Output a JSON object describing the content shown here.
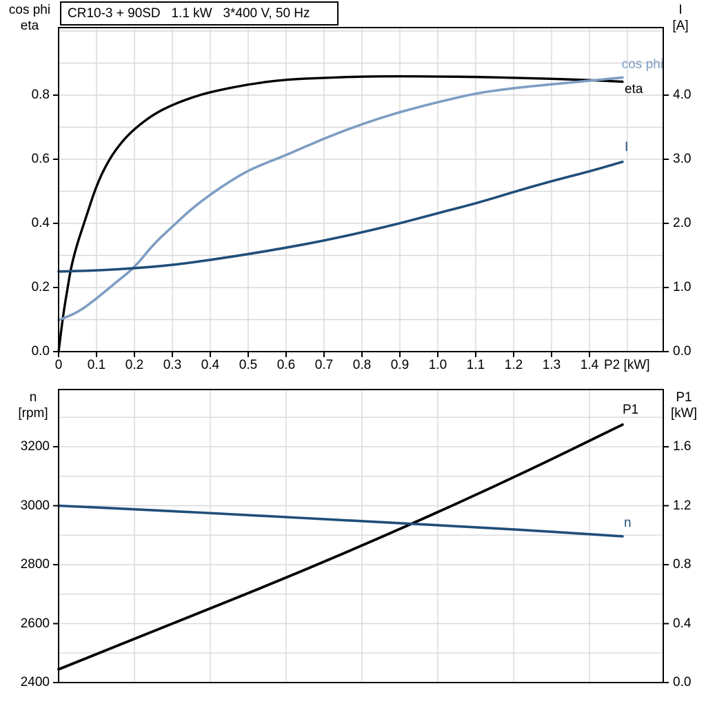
{
  "window": {
    "background": "#FFFFFF"
  },
  "title_box": {
    "text": "CR10-3 + 90SD   1.1 kW   3*400 V, 50 Hz"
  },
  "axes_titles": {
    "top_left_1": "cos phi",
    "top_left_2": "eta",
    "top_right_1": "I",
    "top_right_2": "[A]",
    "x_axis": "P2 [kW]",
    "bottom_left_1": "n",
    "bottom_left_2": "[rpm]",
    "bottom_right_1": "P1",
    "bottom_right_2": "[kW]"
  },
  "curve_labels": {
    "cos_phi": "cos phi",
    "eta": "eta",
    "current": "I",
    "p1": "P1",
    "speed": "n"
  },
  "colors": {
    "background": "#FFFFFF",
    "black": "#000000",
    "light_blue": "#7D9DC2",
    "dark_blue": "#1F4E79",
    "grid": "#D8D8D8",
    "frame": "#000000"
  },
  "chart_data": [
    {
      "type": "line",
      "title": "CR10-3 + 90SD  1.1 kW  3*400 V, 50 Hz",
      "xlabel": "P2 [kW]",
      "ylabel_left": "cos phi / eta",
      "ylabel_right": "I [A]",
      "xlim": [
        0,
        1.5945
      ],
      "ylim_left": [
        0,
        1.0108
      ],
      "ylim_right": [
        0,
        5.054
      ],
      "grid": true,
      "x_grid": [
        0.1,
        0.2,
        0.3,
        0.4,
        0.5,
        0.6,
        0.7,
        0.8,
        0.9,
        1.0,
        1.1,
        1.2,
        1.3,
        1.4,
        1.5
      ],
      "y_grid_left": [
        0.1,
        0.2,
        0.3,
        0.4,
        0.5,
        0.6,
        0.7,
        0.8,
        0.9,
        1.0
      ],
      "x_ticks": [
        {
          "v": 0,
          "t": "0"
        },
        {
          "v": 0.1,
          "t": "0.1"
        },
        {
          "v": 0.2,
          "t": "0.2"
        },
        {
          "v": 0.3,
          "t": "0.3"
        },
        {
          "v": 0.4,
          "t": "0.4"
        },
        {
          "v": 0.5,
          "t": "0.5"
        },
        {
          "v": 0.6,
          "t": "0.6"
        },
        {
          "v": 0.7,
          "t": "0.7"
        },
        {
          "v": 0.8,
          "t": "0.8"
        },
        {
          "v": 0.9,
          "t": "0.9"
        },
        {
          "v": 1.0,
          "t": "1.0"
        },
        {
          "v": 1.1,
          "t": "1.1"
        },
        {
          "v": 1.2,
          "t": "1.2"
        },
        {
          "v": 1.3,
          "t": "1.3"
        },
        {
          "v": 1.4,
          "t": "1.4"
        }
      ],
      "left_ticks": [
        {
          "v": 0.0,
          "t": "0.0"
        },
        {
          "v": 0.2,
          "t": "0.2"
        },
        {
          "v": 0.4,
          "t": "0.4"
        },
        {
          "v": 0.6,
          "t": "0.6"
        },
        {
          "v": 0.8,
          "t": "0.8"
        }
      ],
      "right_ticks": [
        {
          "v": 0.0,
          "t": "0.0"
        },
        {
          "v": 1.0,
          "t": "1.0"
        },
        {
          "v": 2.0,
          "t": "2.0"
        },
        {
          "v": 3.0,
          "t": "3.0"
        },
        {
          "v": 4.0,
          "t": "4.0"
        }
      ],
      "series": [
        {
          "name": "eta",
          "axis": "left",
          "color": "#000000",
          "width": 3.4,
          "points": [
            [
              0,
              0
            ],
            [
              0.012,
              0.115
            ],
            [
              0.024,
              0.2
            ],
            [
              0.033,
              0.265
            ],
            [
              0.05,
              0.34
            ],
            [
              0.067,
              0.4
            ],
            [
              0.1,
              0.52
            ],
            [
              0.133,
              0.6
            ],
            [
              0.167,
              0.655
            ],
            [
              0.2,
              0.695
            ],
            [
              0.25,
              0.74
            ],
            [
              0.3,
              0.77
            ],
            [
              0.35,
              0.792
            ],
            [
              0.4,
              0.81
            ],
            [
              0.5,
              0.834
            ],
            [
              0.6,
              0.849
            ],
            [
              0.7,
              0.854
            ],
            [
              0.8,
              0.858
            ],
            [
              0.9,
              0.859
            ],
            [
              1.0,
              0.858
            ],
            [
              1.1,
              0.857
            ],
            [
              1.2,
              0.854
            ],
            [
              1.3,
              0.851
            ],
            [
              1.4,
              0.847
            ],
            [
              1.487,
              0.842
            ]
          ]
        },
        {
          "name": "cos phi",
          "axis": "left",
          "color": "#7D9DC2",
          "width": 3.6,
          "points": [
            [
              0,
              0.098
            ],
            [
              0.05,
              0.122
            ],
            [
              0.1,
              0.165
            ],
            [
              0.15,
              0.215
            ],
            [
              0.2,
              0.262
            ],
            [
              0.25,
              0.335
            ],
            [
              0.3,
              0.39
            ],
            [
              0.35,
              0.445
            ],
            [
              0.4,
              0.49
            ],
            [
              0.45,
              0.53
            ],
            [
              0.5,
              0.565
            ],
            [
              0.55,
              0.59
            ],
            [
              0.6,
              0.613
            ],
            [
              0.7,
              0.665
            ],
            [
              0.8,
              0.71
            ],
            [
              0.9,
              0.748
            ],
            [
              1.0,
              0.778
            ],
            [
              1.1,
              0.806
            ],
            [
              1.2,
              0.822
            ],
            [
              1.3,
              0.834
            ],
            [
              1.4,
              0.845
            ],
            [
              1.487,
              0.855
            ]
          ]
        },
        {
          "name": "I",
          "axis": "right",
          "color": "#1F4E79",
          "width": 3.6,
          "points": [
            [
              0,
              1.25
            ],
            [
              0.1,
              1.265
            ],
            [
              0.2,
              1.3
            ],
            [
              0.3,
              1.35
            ],
            [
              0.4,
              1.43
            ],
            [
              0.5,
              1.52
            ],
            [
              0.6,
              1.62
            ],
            [
              0.7,
              1.73
            ],
            [
              0.8,
              1.86
            ],
            [
              0.9,
              2.0
            ],
            [
              1.0,
              2.16
            ],
            [
              1.1,
              2.31
            ],
            [
              1.2,
              2.49
            ],
            [
              1.3,
              2.66
            ],
            [
              1.4,
              2.81
            ],
            [
              1.487,
              2.96
            ]
          ]
        }
      ]
    },
    {
      "type": "line",
      "title": "",
      "xlabel": "P2 [kW]",
      "ylabel_left": "n [rpm]",
      "ylabel_right": "P1 [kW]",
      "xlim": [
        0,
        1.5945
      ],
      "ylim_left": [
        2400,
        3394
      ],
      "ylim_right": [
        0,
        1.9883
      ],
      "grid": true,
      "x_grid": [
        0.2,
        0.4,
        0.6,
        0.8,
        1.0,
        1.2,
        1.4
      ],
      "y_grid_left": [
        2500,
        2600,
        2700,
        2800,
        2900,
        3000,
        3100,
        3200,
        3300
      ],
      "x_ticks": [],
      "left_ticks": [
        {
          "v": 2400,
          "t": "2400"
        },
        {
          "v": 2600,
          "t": "2600"
        },
        {
          "v": 2800,
          "t": "2800"
        },
        {
          "v": 3000,
          "t": "3000"
        },
        {
          "v": 3200,
          "t": "3200"
        }
      ],
      "right_ticks": [
        {
          "v": 0.0,
          "t": "0.0"
        },
        {
          "v": 0.4,
          "t": "0.4"
        },
        {
          "v": 0.8,
          "t": "0.8"
        },
        {
          "v": 1.2,
          "t": "1.2"
        },
        {
          "v": 1.6,
          "t": "1.6"
        }
      ],
      "series": [
        {
          "name": "P1",
          "axis": "right",
          "color": "#000000",
          "width": 3.8,
          "points": [
            [
              0,
              0.09
            ],
            [
              0.3,
              0.4
            ],
            [
              0.6,
              0.71
            ],
            [
              0.9,
              1.04
            ],
            [
              1.2,
              1.39
            ],
            [
              1.487,
              1.75
            ]
          ]
        },
        {
          "name": "n",
          "axis": "left",
          "color": "#1F4E79",
          "width": 3.6,
          "points": [
            [
              0,
              3000
            ],
            [
              0.25,
              2985
            ],
            [
              0.5,
              2968
            ],
            [
              0.75,
              2951
            ],
            [
              1.0,
              2934
            ],
            [
              1.25,
              2916
            ],
            [
              1.487,
              2896
            ]
          ]
        }
      ]
    }
  ]
}
